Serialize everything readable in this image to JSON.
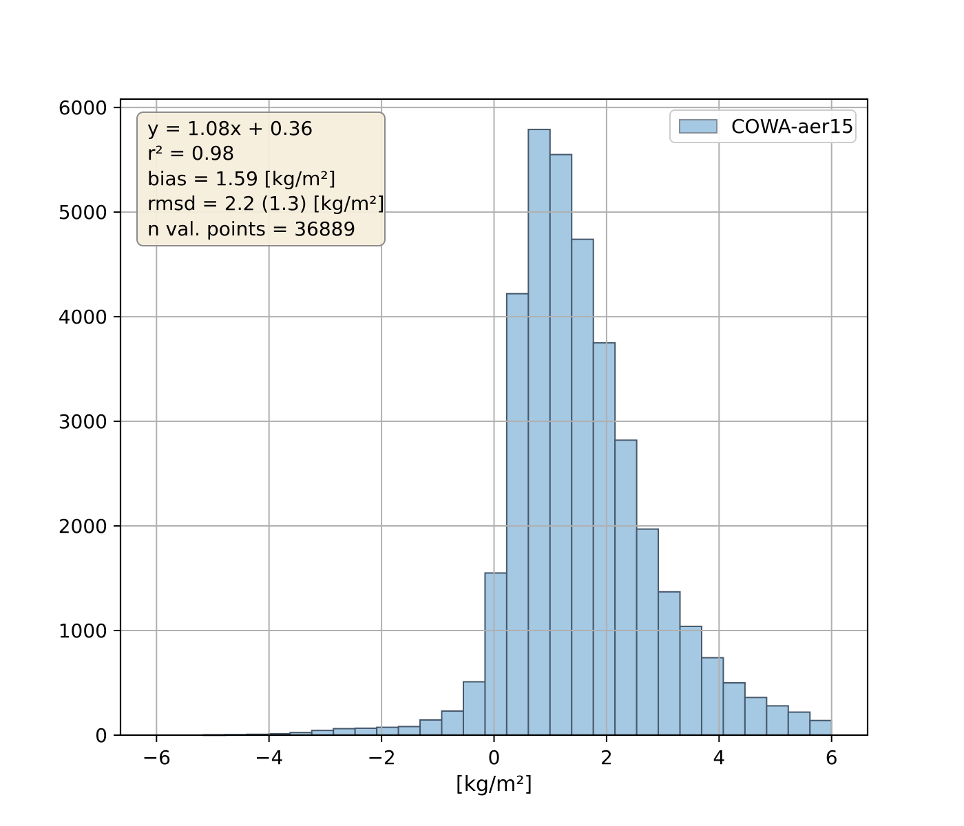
{
  "chart_data": {
    "type": "bar",
    "subtype": "histogram",
    "title": "",
    "xlabel": "[kg/m²]",
    "ylabel": "",
    "xlim": [
      -6.64,
      6.64
    ],
    "ylim": [
      0,
      6080
    ],
    "grid": true,
    "legend_position": "upper right",
    "series": [
      {
        "name": "COWA-aer15",
        "bin_start": -5.165,
        "bin_width": 0.385,
        "counts": [
          3,
          5,
          8,
          13,
          25,
          45,
          62,
          66,
          75,
          82,
          145,
          230,
          510,
          1550,
          4220,
          5790,
          5550,
          4740,
          3750,
          2820,
          1970,
          1370,
          1040,
          740,
          500,
          360,
          280,
          220,
          140
        ]
      }
    ],
    "x_ticks": {
      "values": [
        -6,
        -4,
        -2,
        0,
        2,
        4,
        6
      ],
      "labels": [
        "−6",
        "−4",
        "−2",
        "0",
        "2",
        "4",
        "6"
      ]
    },
    "y_ticks": {
      "values": [
        0,
        1000,
        2000,
        3000,
        4000,
        5000,
        6000
      ],
      "labels": [
        "0",
        "1000",
        "2000",
        "3000",
        "4000",
        "5000",
        "6000"
      ]
    },
    "colors": {
      "bar_fill": "#a5c8e3",
      "bar_edge": "#46586a",
      "grid": "#b0b0b0",
      "spine": "#000000",
      "tick_label": "#000000"
    }
  },
  "stats_box": {
    "lines": [
      "y = 1.08x + 0.36",
      "r² = 0.98",
      "bias = 1.59 [kg/m²]",
      "rmsd = 2.2 (1.3) [kg/m²]",
      "n val. points = 36889"
    ],
    "bg": "#f6eedb",
    "border": "#8c8c8c"
  },
  "legend": {
    "label": "COWA-aer15",
    "patch_fill": "#a5c8e3",
    "patch_edge": "#848e98"
  }
}
